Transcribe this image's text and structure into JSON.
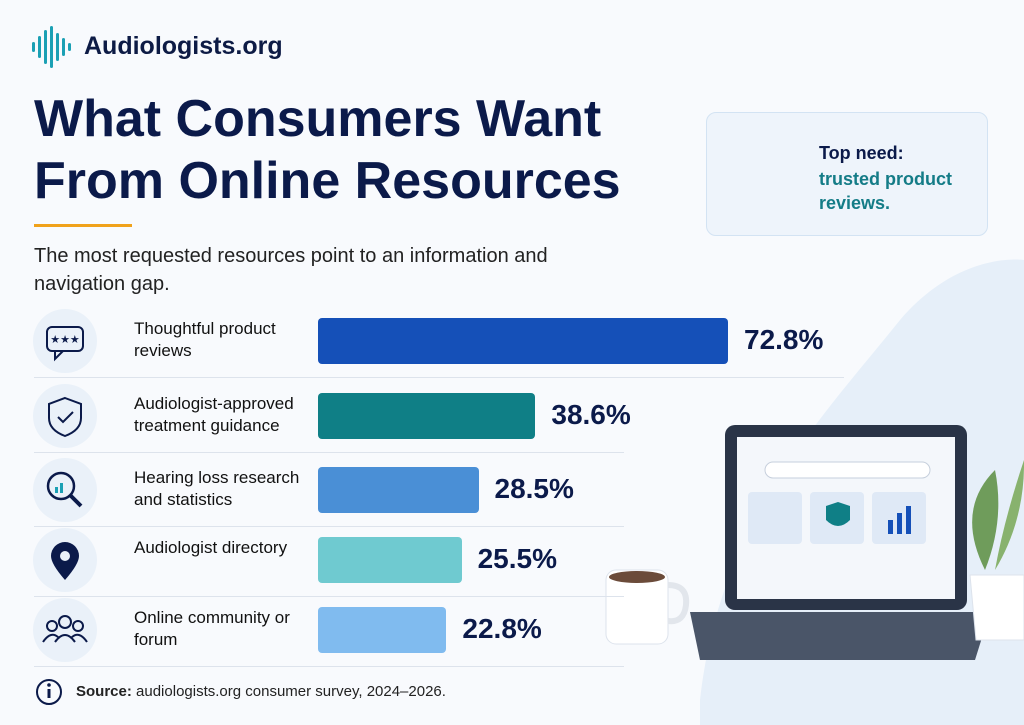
{
  "brand": "Audiologists.org",
  "callout": {
    "label": "Top need:",
    "text": "trusted product reviews."
  },
  "source": {
    "label": "Source:",
    "text": "audiologists.org consumer survey, 2024–2026."
  },
  "chart_data": {
    "type": "bar",
    "orientation": "horizontal",
    "title": "What Consumers Want From Online Resources",
    "subtitle": "The most requested resources point to an information and navigation gap.",
    "categories": [
      "Thoughtful product reviews",
      "Audiologist-approved treatment guidance",
      "Hearing loss research and statistics",
      "Audiologist directory",
      "Online community or forum"
    ],
    "values": [
      72.8,
      38.6,
      28.5,
      25.5,
      22.8
    ],
    "value_labels": [
      "72.8%",
      "38.6%",
      "28.5%",
      "25.5%",
      "22.8%"
    ],
    "colors": [
      "#1550b8",
      "#0f7f86",
      "#4a8fd6",
      "#6fcad0",
      "#80bbef"
    ]
  }
}
